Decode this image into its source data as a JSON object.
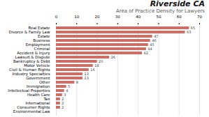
{
  "chart_data": {
    "type": "bar",
    "orientation": "horizontal",
    "title": "Riverside CA",
    "subtitle": "Area of Practice Density for Lawyers",
    "categories": [
      "Real Estate",
      "Divorce & Family Law",
      "Estate",
      "Business",
      "Employment",
      "Criminal",
      "Accident & Injury",
      "Lawsuit & Dispute",
      "Bankruptcy & Debt",
      "Motor Vehicle",
      "Civil & Human Rights",
      "Industry Specialties",
      "Government",
      "Other",
      "Immigration",
      "Intellectual Properties",
      "Health Care",
      "Tax",
      "International",
      "Consumer Rights",
      "Environmental Law"
    ],
    "values": [
      65,
      63,
      47,
      46,
      45,
      44,
      42,
      26,
      20,
      18,
      16,
      13,
      13,
      9,
      5,
      4,
      3,
      2,
      2,
      2,
      0
    ],
    "value_labels": [
      "65",
      "63",
      "47",
      "46",
      "45",
      "44",
      "42",
      "26",
      "20",
      "18",
      "16",
      "13",
      "13",
      "9",
      "5",
      "4",
      "3",
      "2",
      "2",
      "2",
      null
    ],
    "data_labels": true,
    "color": "#cd6e66",
    "xlim": [
      0,
      70
    ],
    "xticks": [
      0,
      10,
      20,
      30,
      40,
      50,
      60,
      70
    ],
    "grid": true
  }
}
